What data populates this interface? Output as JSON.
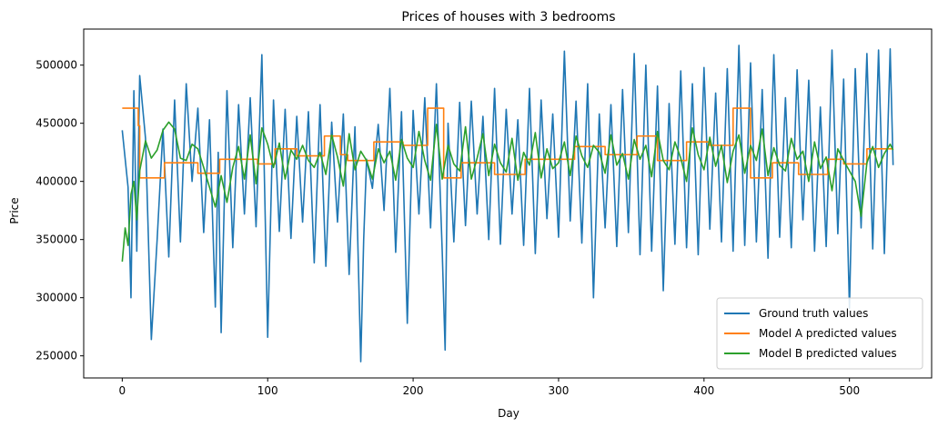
{
  "chart_data": {
    "type": "line",
    "title": "Prices of houses with 3 bedrooms",
    "xlabel": "Day",
    "ylabel": "Price",
    "xlim": [
      -26.5,
      556.5
    ],
    "ylim": [
      231000,
      531000
    ],
    "xticks": [
      0,
      100,
      200,
      300,
      400,
      500
    ],
    "yticks": [
      250000,
      300000,
      350000,
      400000,
      450000,
      500000
    ],
    "grid": false,
    "legend_position": "lower-right",
    "series": [
      {
        "name": "Ground truth values",
        "color": "#1f77b4",
        "x": [
          0,
          4,
          6,
          8,
          10,
          12,
          16,
          20,
          24,
          28,
          32,
          36,
          40,
          44,
          48,
          52,
          56,
          60,
          64,
          66,
          68,
          72,
          76,
          80,
          84,
          88,
          92,
          96,
          100,
          104,
          108,
          112,
          116,
          120,
          124,
          128,
          132,
          136,
          140,
          144,
          148,
          152,
          156,
          160,
          164,
          166,
          168,
          172,
          176,
          180,
          184,
          188,
          192,
          196,
          200,
          204,
          208,
          212,
          216,
          220,
          222,
          224,
          228,
          232,
          236,
          240,
          244,
          248,
          252,
          256,
          260,
          264,
          268,
          272,
          276,
          280,
          284,
          288,
          292,
          296,
          300,
          304,
          308,
          312,
          316,
          320,
          324,
          328,
          332,
          336,
          340,
          344,
          348,
          352,
          356,
          360,
          364,
          368,
          372,
          376,
          380,
          384,
          388,
          392,
          396,
          400,
          404,
          408,
          412,
          416,
          420,
          424,
          428,
          432,
          436,
          440,
          444,
          448,
          452,
          456,
          460,
          464,
          468,
          472,
          476,
          480,
          484,
          488,
          492,
          496,
          500,
          502,
          504,
          508,
          512,
          516,
          520,
          524,
          528,
          530
        ],
        "y": [
          444000,
          395000,
          300000,
          478000,
          340000,
          491000,
          437000,
          264000,
          350000,
          445000,
          335000,
          470000,
          348000,
          484000,
          400000,
          463000,
          356000,
          453000,
          292000,
          425000,
          270000,
          478000,
          343000,
          466000,
          372000,
          472000,
          361000,
          509000,
          266000,
          470000,
          357000,
          462000,
          351000,
          456000,
          365000,
          460000,
          330000,
          466000,
          327000,
          451000,
          365000,
          458000,
          320000,
          447000,
          245000,
          350000,
          419000,
          394000,
          449000,
          375000,
          480000,
          339000,
          460000,
          278000,
          461000,
          372000,
          472000,
          360000,
          484000,
          340000,
          255000,
          450000,
          348000,
          468000,
          362000,
          469000,
          372000,
          456000,
          350000,
          480000,
          346000,
          462000,
          372000,
          453000,
          345000,
          480000,
          338000,
          470000,
          368000,
          458000,
          352000,
          512000,
          366000,
          469000,
          347000,
          484000,
          300000,
          458000,
          360000,
          466000,
          344000,
          479000,
          356000,
          510000,
          337000,
          500000,
          340000,
          482000,
          306000,
          467000,
          346000,
          495000,
          343000,
          484000,
          337000,
          498000,
          359000,
          476000,
          348000,
          497000,
          340000,
          517000,
          345000,
          502000,
          348000,
          479000,
          334000,
          509000,
          352000,
          472000,
          343000,
          496000,
          367000,
          487000,
          340000,
          464000,
          344000,
          513000,
          355000,
          488000,
          291000,
          404000,
          497000,
          360000,
          510000,
          342000,
          513000,
          338000,
          514000,
          414000
        ]
      },
      {
        "name": "Model A predicted values",
        "color": "#ff7f0e",
        "x": [
          0,
          11,
          11,
          12,
          12,
          29,
          29,
          52,
          52,
          67,
          67,
          93,
          93,
          105,
          105,
          120,
          120,
          139,
          139,
          150,
          150,
          155,
          155,
          173,
          173,
          193,
          193,
          210,
          210,
          221,
          221,
          233,
          233,
          256,
          256,
          277,
          277,
          311,
          311,
          332,
          332,
          354,
          354,
          368,
          368,
          388,
          388,
          404,
          404,
          420,
          420,
          432,
          432,
          447,
          447,
          465,
          465,
          485,
          485,
          496,
          496,
          512,
          512,
          530
        ],
        "y": [
          463000,
          463000,
          448000,
          448000,
          403000,
          403000,
          416000,
          416000,
          407000,
          407000,
          419000,
          419000,
          415000,
          415000,
          428000,
          428000,
          422000,
          422000,
          439000,
          439000,
          423000,
          423000,
          418000,
          418000,
          434000,
          434000,
          431000,
          431000,
          463000,
          463000,
          403000,
          403000,
          416000,
          416000,
          406000,
          406000,
          419000,
          419000,
          430000,
          430000,
          423000,
          423000,
          439000,
          439000,
          418000,
          418000,
          434000,
          434000,
          431000,
          431000,
          463000,
          463000,
          403000,
          403000,
          416000,
          416000,
          406000,
          406000,
          419000,
          419000,
          415000,
          415000,
          428000,
          428000
        ]
      },
      {
        "name": "Model B predicted values",
        "color": "#2ca02c",
        "x": [
          0,
          2,
          4,
          6,
          8,
          10,
          12,
          16,
          20,
          24,
          28,
          32,
          36,
          40,
          44,
          48,
          52,
          56,
          60,
          64,
          68,
          72,
          76,
          80,
          84,
          88,
          92,
          96,
          100,
          104,
          108,
          112,
          116,
          120,
          124,
          128,
          132,
          136,
          140,
          144,
          148,
          152,
          156,
          160,
          164,
          168,
          172,
          176,
          180,
          184,
          188,
          192,
          196,
          200,
          204,
          208,
          212,
          216,
          220,
          224,
          228,
          232,
          236,
          240,
          244,
          248,
          252,
          256,
          260,
          264,
          268,
          272,
          276,
          280,
          284,
          288,
          292,
          296,
          300,
          304,
          308,
          312,
          316,
          320,
          324,
          328,
          332,
          336,
          340,
          344,
          348,
          352,
          356,
          360,
          364,
          368,
          372,
          376,
          380,
          384,
          388,
          392,
          396,
          400,
          404,
          408,
          412,
          416,
          420,
          424,
          428,
          432,
          436,
          440,
          444,
          448,
          452,
          456,
          460,
          464,
          468,
          472,
          476,
          480,
          484,
          488,
          492,
          496,
          500,
          504,
          508,
          512,
          516,
          520,
          524,
          528,
          530
        ],
        "y": [
          331000,
          360000,
          345000,
          389000,
          400000,
          367000,
          409000,
          435000,
          420000,
          427000,
          444000,
          451000,
          445000,
          420000,
          418000,
          432000,
          428000,
          412000,
          395000,
          378000,
          405000,
          382000,
          412000,
          430000,
          402000,
          440000,
          398000,
          446000,
          432000,
          412000,
          433000,
          402000,
          427000,
          419000,
          431000,
          418000,
          412000,
          425000,
          406000,
          440000,
          421000,
          396000,
          441000,
          410000,
          426000,
          418000,
          402000,
          428000,
          416000,
          426000,
          401000,
          436000,
          420000,
          412000,
          443000,
          418000,
          401000,
          449000,
          402000,
          431000,
          415000,
          409000,
          447000,
          402000,
          420000,
          441000,
          405000,
          432000,
          416000,
          408000,
          437000,
          401000,
          425000,
          414000,
          442000,
          403000,
          428000,
          411000,
          416000,
          434000,
          405000,
          439000,
          422000,
          412000,
          431000,
          425000,
          407000,
          440000,
          414000,
          424000,
          402000,
          436000,
          419000,
          431000,
          404000,
          443000,
          418000,
          410000,
          434000,
          420000,
          400000,
          446000,
          423000,
          410000,
          438000,
          413000,
          431000,
          399000,
          426000,
          440000,
          407000,
          431000,
          418000,
          445000,
          405000,
          429000,
          414000,
          409000,
          437000,
          419000,
          426000,
          400000,
          434000,
          411000,
          421000,
          392000,
          428000,
          418000,
          409000,
          400000,
          370000,
          416000,
          430000,
          412000,
          424000,
          432000,
          427000
        ]
      }
    ]
  }
}
